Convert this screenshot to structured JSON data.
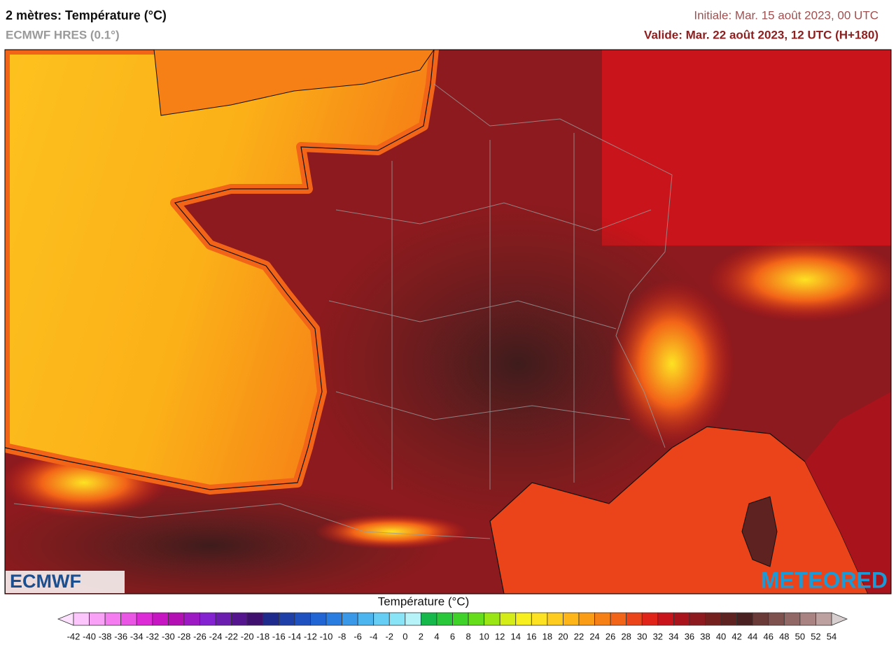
{
  "header": {
    "title": "2 mètres: Température (°C)",
    "subtitle": "ECMWF HRES (0.1°)",
    "initial": "Initiale: Mar. 15 août 2023, 00 UTC",
    "valid": "Valide: Mar. 22 août 2023, 12 UTC (H+180)"
  },
  "map": {
    "logos": [
      "ECMWF",
      "METEORED"
    ]
  },
  "legend": {
    "title": "Température (°C)",
    "ticks": [
      -42,
      -40,
      -38,
      -36,
      -34,
      -32,
      -30,
      -28,
      -26,
      -24,
      -22,
      -20,
      -18,
      -16,
      -14,
      -12,
      -10,
      -8,
      -6,
      -4,
      -2,
      0,
      2,
      4,
      6,
      8,
      10,
      12,
      14,
      16,
      18,
      20,
      22,
      24,
      26,
      28,
      30,
      32,
      34,
      36,
      38,
      40,
      42,
      44,
      46,
      48,
      50,
      52,
      54
    ],
    "colors": [
      "#fde0fd",
      "#fcc6fc",
      "#f9a0f7",
      "#f47cf0",
      "#ea55e6",
      "#dd2bd8",
      "#c815c3",
      "#b40fb4",
      "#9c19c4",
      "#8421d0",
      "#6b1db0",
      "#55158f",
      "#40106e",
      "#1e2a8c",
      "#1d3fa7",
      "#1e50c0",
      "#2164d4",
      "#2a7de0",
      "#3a98e8",
      "#4cb4ef",
      "#66cef4",
      "#8ae4f7",
      "#b5f3f8",
      "#16b84b",
      "#28c83a",
      "#3fd32a",
      "#66dd1a",
      "#99e614",
      "#d4ec18",
      "#f7f01e",
      "#fde223",
      "#fdcc1e",
      "#fdb518",
      "#fb9c16",
      "#f78016",
      "#f26418",
      "#eb441a",
      "#e0241a",
      "#c8141a",
      "#a8131c",
      "#8c1a1e",
      "#74201f",
      "#5e2220",
      "#4a2020",
      "#6a3a38",
      "#7e504e",
      "#926866",
      "#a88382",
      "#bda0a0",
      "#d8d0d0"
    ]
  }
}
